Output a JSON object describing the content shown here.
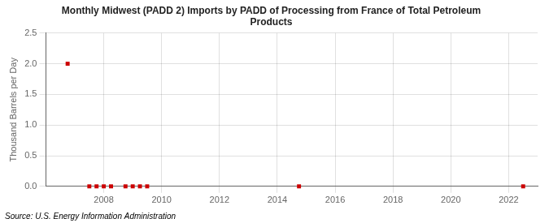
{
  "chart_data": {
    "type": "scatter",
    "title": "Monthly Midwest (PADD 2) Imports by PADD of Processing from France of Total Petroleum\nProducts",
    "y_label": "Thousand Barrels per Day",
    "annotations": [
      "Source: U.S. Energy Information Administration"
    ],
    "x": [
      2006.75,
      2007.5,
      2007.75,
      2008.0,
      2008.25,
      2008.75,
      2009.0,
      2009.25,
      2009.5,
      2014.75,
      2022.5
    ],
    "values": [
      2.0,
      0.0,
      0.0,
      0.0,
      0.0,
      0.0,
      0.0,
      0.0,
      0.0,
      0.0,
      0.0
    ],
    "color": "#cc0000",
    "marker": "square",
    "xlim": [
      2006.0,
      2023.0
    ],
    "ylim": [
      0.0,
      2.5
    ],
    "xticks": [
      2008,
      2010,
      2012,
      2014,
      2016,
      2018,
      2020,
      2022
    ],
    "yticks": [
      {
        "value": 0.0,
        "label": "0.0"
      },
      0.5,
      {
        "value": 1.0,
        "label": "1.0"
      },
      1.5,
      {
        "value": 2.0,
        "label": "2.0"
      },
      2.5
    ],
    "grid": true
  }
}
